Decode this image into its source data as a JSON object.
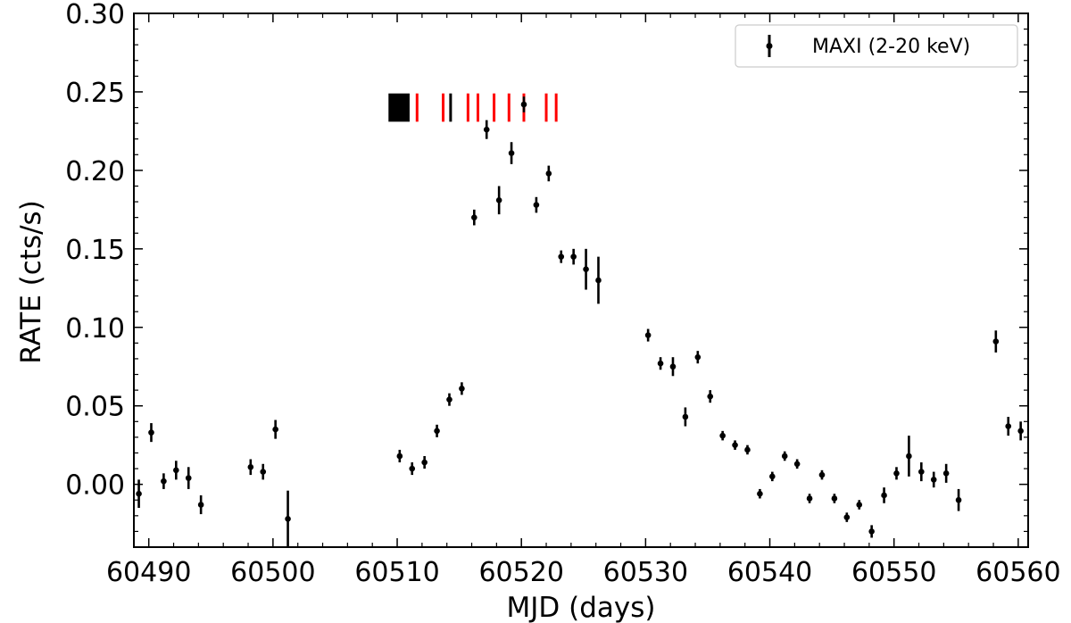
{
  "chart_data": {
    "type": "scatter",
    "xlabel": "MJD (days)",
    "ylabel": "RATE (cts/s)",
    "xlim": [
      60488.8,
      60560.8
    ],
    "ylim": [
      -0.04,
      0.3
    ],
    "xticks": [
      60490,
      60500,
      60510,
      60520,
      60530,
      60540,
      60550,
      60560
    ],
    "xtick_labels": [
      "60490",
      "60500",
      "60510",
      "60520",
      "60530",
      "60540",
      "60550",
      "60560"
    ],
    "yticks": [
      0.0,
      0.05,
      0.1,
      0.15,
      0.2,
      0.25,
      0.3
    ],
    "ytick_labels": [
      "0.00",
      "0.05",
      "0.10",
      "0.15",
      "0.20",
      "0.25",
      "0.30"
    ],
    "grid": false,
    "legend_position": "top-right",
    "series": [
      {
        "name": "MAXI (2-20 keV)",
        "color": "#000000",
        "points": [
          {
            "x": 60489.2,
            "y": -0.006,
            "err": 0.009
          },
          {
            "x": 60490.2,
            "y": 0.033,
            "err": 0.006
          },
          {
            "x": 60491.2,
            "y": 0.002,
            "err": 0.005
          },
          {
            "x": 60492.2,
            "y": 0.009,
            "err": 0.006
          },
          {
            "x": 60493.2,
            "y": 0.004,
            "err": 0.007
          },
          {
            "x": 60494.2,
            "y": -0.013,
            "err": 0.006
          },
          {
            "x": 60498.2,
            "y": 0.011,
            "err": 0.005
          },
          {
            "x": 60499.2,
            "y": 0.008,
            "err": 0.005
          },
          {
            "x": 60500.2,
            "y": 0.035,
            "err": 0.006
          },
          {
            "x": 60501.2,
            "y": -0.022,
            "err": 0.018
          },
          {
            "x": 60510.2,
            "y": 0.018,
            "err": 0.004
          },
          {
            "x": 60511.2,
            "y": 0.01,
            "err": 0.004
          },
          {
            "x": 60512.2,
            "y": 0.014,
            "err": 0.004
          },
          {
            "x": 60513.2,
            "y": 0.034,
            "err": 0.004
          },
          {
            "x": 60514.2,
            "y": 0.054,
            "err": 0.004
          },
          {
            "x": 60515.2,
            "y": 0.061,
            "err": 0.004
          },
          {
            "x": 60516.2,
            "y": 0.17,
            "err": 0.005
          },
          {
            "x": 60517.2,
            "y": 0.226,
            "err": 0.006
          },
          {
            "x": 60518.2,
            "y": 0.181,
            "err": 0.009
          },
          {
            "x": 60519.2,
            "y": 0.211,
            "err": 0.007
          },
          {
            "x": 60520.2,
            "y": 0.242,
            "err": 0.005
          },
          {
            "x": 60521.2,
            "y": 0.178,
            "err": 0.005
          },
          {
            "x": 60522.2,
            "y": 0.198,
            "err": 0.005
          },
          {
            "x": 60523.2,
            "y": 0.145,
            "err": 0.004
          },
          {
            "x": 60524.2,
            "y": 0.145,
            "err": 0.005
          },
          {
            "x": 60525.2,
            "y": 0.137,
            "err": 0.013
          },
          {
            "x": 60526.2,
            "y": 0.13,
            "err": 0.015
          },
          {
            "x": 60530.2,
            "y": 0.095,
            "err": 0.004
          },
          {
            "x": 60531.2,
            "y": 0.077,
            "err": 0.004
          },
          {
            "x": 60532.2,
            "y": 0.075,
            "err": 0.006
          },
          {
            "x": 60533.2,
            "y": 0.043,
            "err": 0.006
          },
          {
            "x": 60534.2,
            "y": 0.081,
            "err": 0.004
          },
          {
            "x": 60535.2,
            "y": 0.056,
            "err": 0.004
          },
          {
            "x": 60536.2,
            "y": 0.031,
            "err": 0.003
          },
          {
            "x": 60537.2,
            "y": 0.025,
            "err": 0.003
          },
          {
            "x": 60538.2,
            "y": 0.022,
            "err": 0.003
          },
          {
            "x": 60539.2,
            "y": -0.006,
            "err": 0.003
          },
          {
            "x": 60540.2,
            "y": 0.005,
            "err": 0.003
          },
          {
            "x": 60541.2,
            "y": 0.018,
            "err": 0.003
          },
          {
            "x": 60542.2,
            "y": 0.013,
            "err": 0.003
          },
          {
            "x": 60543.2,
            "y": -0.009,
            "err": 0.003
          },
          {
            "x": 60544.2,
            "y": 0.006,
            "err": 0.003
          },
          {
            "x": 60545.2,
            "y": -0.009,
            "err": 0.003
          },
          {
            "x": 60546.2,
            "y": -0.021,
            "err": 0.003
          },
          {
            "x": 60547.2,
            "y": -0.013,
            "err": 0.003
          },
          {
            "x": 60548.2,
            "y": -0.03,
            "err": 0.004
          },
          {
            "x": 60549.2,
            "y": -0.007,
            "err": 0.005
          },
          {
            "x": 60550.2,
            "y": 0.007,
            "err": 0.004
          },
          {
            "x": 60551.2,
            "y": 0.018,
            "err": 0.013
          },
          {
            "x": 60552.2,
            "y": 0.008,
            "err": 0.006
          },
          {
            "x": 60553.2,
            "y": 0.003,
            "err": 0.005
          },
          {
            "x": 60554.2,
            "y": 0.007,
            "err": 0.006
          },
          {
            "x": 60555.2,
            "y": -0.01,
            "err": 0.007
          },
          {
            "x": 60558.2,
            "y": 0.091,
            "err": 0.007
          },
          {
            "x": 60559.2,
            "y": 0.037,
            "err": 0.006
          },
          {
            "x": 60560.2,
            "y": 0.034,
            "err": 0.006
          }
        ]
      }
    ],
    "markers": {
      "y_center": 0.24,
      "y_half_height": 0.009,
      "black_block": {
        "x_start": 60509.3,
        "x_end": 60511.0,
        "color": "#000000"
      },
      "red_lines": [
        60511.6,
        60513.7,
        60515.7,
        60516.5,
        60517.8,
        60519.0,
        60520.2,
        60522.0,
        60522.8
      ],
      "black_lines": [
        60514.3
      ],
      "red_color": "#ff0000",
      "black_color": "#000000"
    }
  }
}
